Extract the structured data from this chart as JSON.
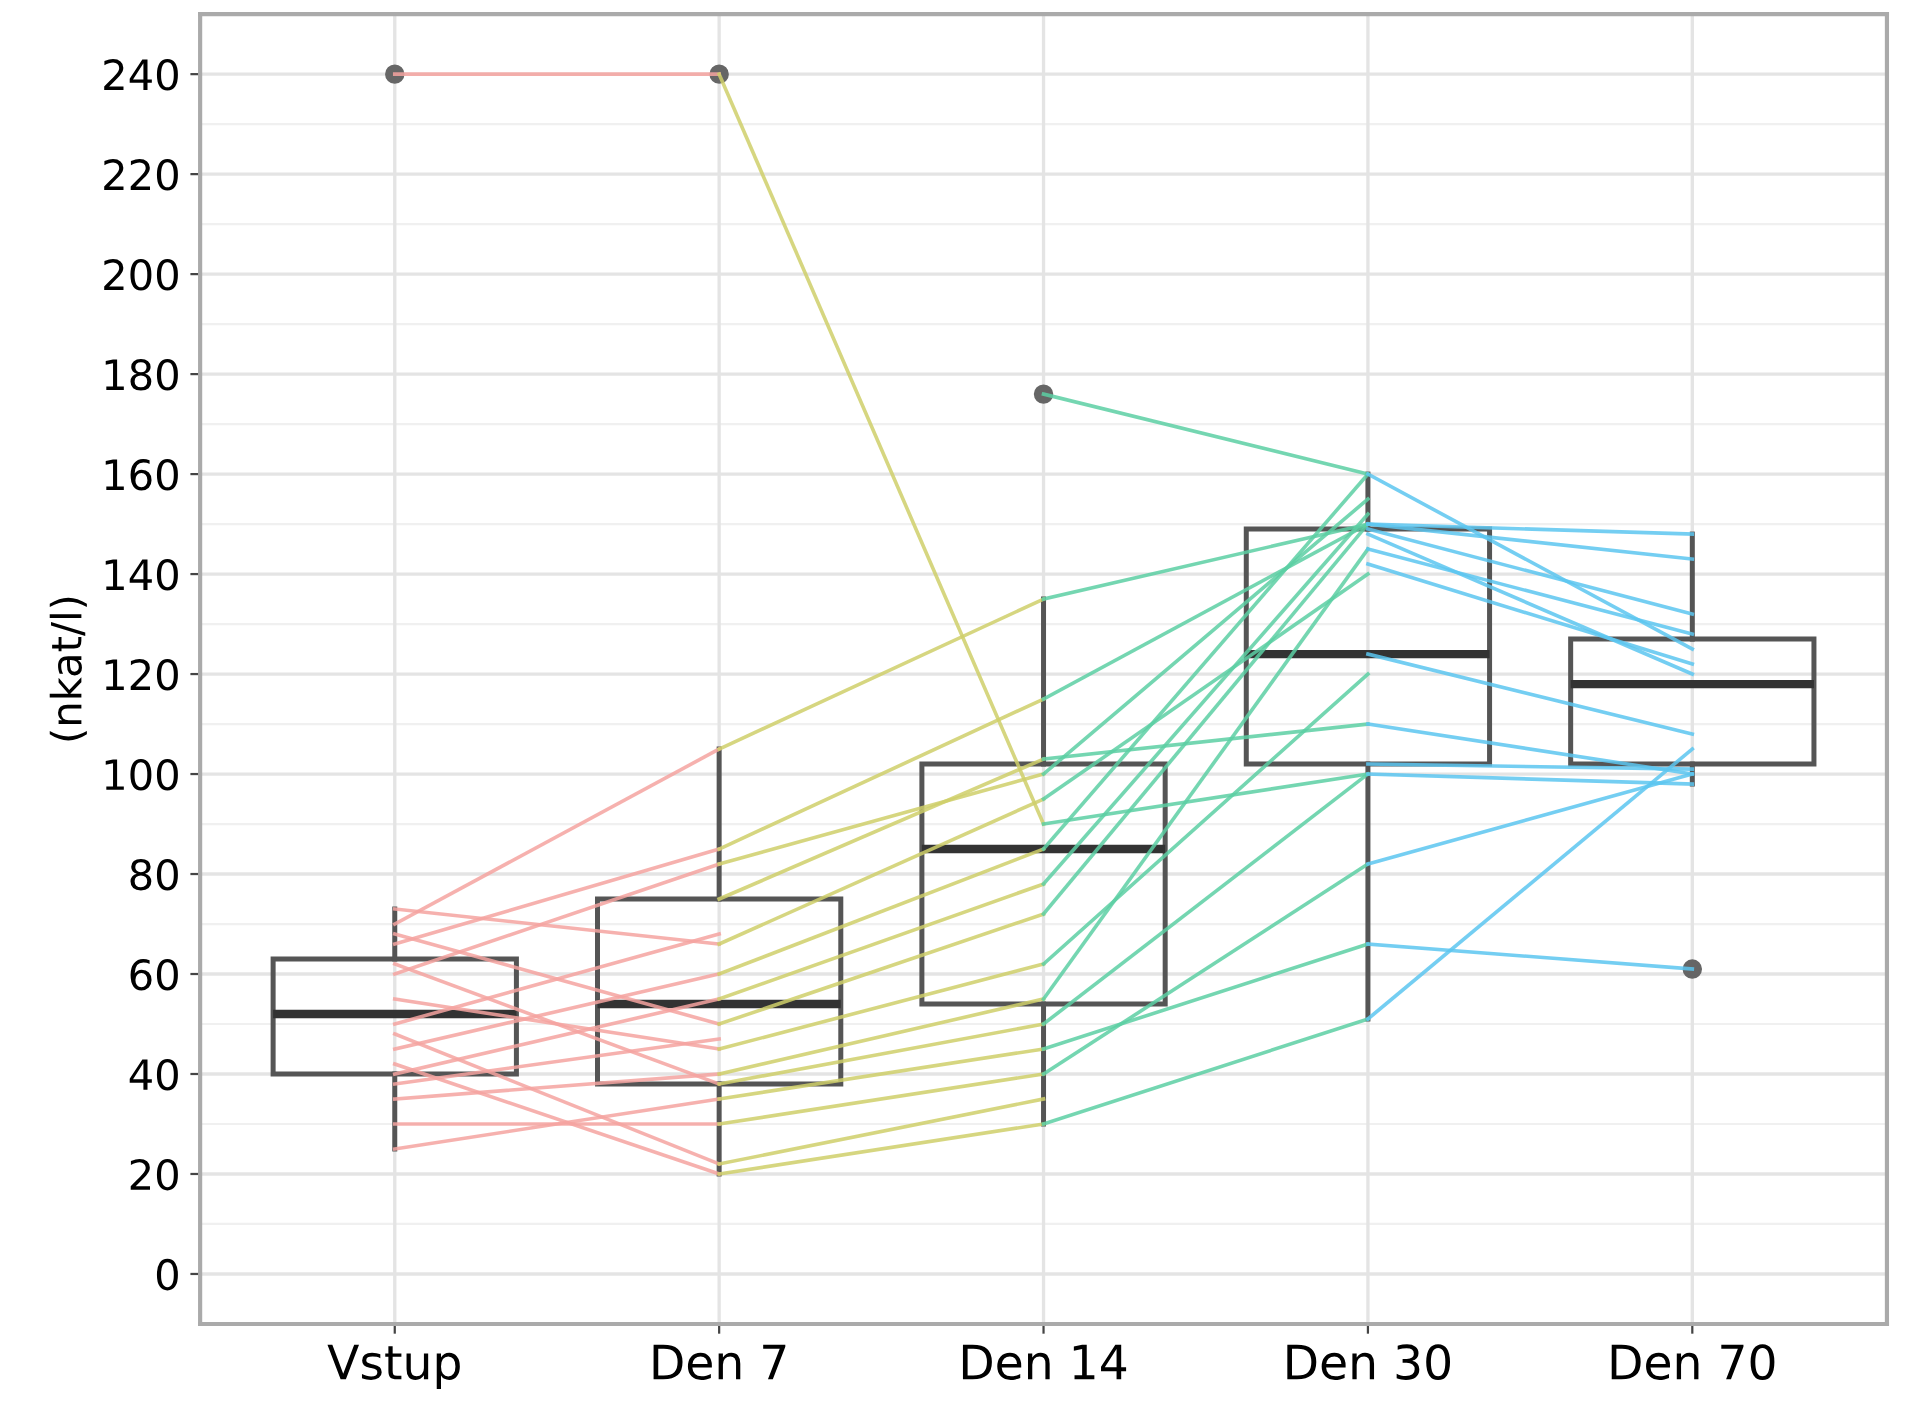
{
  "chart_data": {
    "type": "box",
    "ylabel": "(nkat/l)",
    "categories": [
      "Vstup",
      "Den 7",
      "Den 14",
      "Den 30",
      "Den 70"
    ],
    "ylim": [
      -10,
      252
    ],
    "yticks": [
      0,
      20,
      40,
      60,
      80,
      100,
      120,
      140,
      160,
      180,
      200,
      220,
      240
    ],
    "grid": true,
    "boxes": [
      {
        "low": 25,
        "q1": 40,
        "median": 52,
        "q3": 63,
        "high": 73,
        "outliers": [
          240
        ]
      },
      {
        "low": 20,
        "q1": 38,
        "median": 54,
        "q3": 75,
        "high": 105,
        "outliers": [
          240
        ]
      },
      {
        "low": 30,
        "q1": 54,
        "median": 85,
        "q3": 102,
        "high": 135,
        "outliers": [
          176
        ]
      },
      {
        "low": 51,
        "q1": 102,
        "median": 124,
        "q3": 149,
        "high": 160
      },
      {
        "low": 98,
        "q1": 102,
        "median": 118,
        "q3": 127,
        "high": 148,
        "outliers": [
          61
        ]
      }
    ],
    "series": [
      {
        "type": "line",
        "color": "#f4a3a0",
        "values": [
          240,
          240,
          null,
          null,
          null
        ]
      },
      {
        "type": "line",
        "color": "#f4a3a0",
        "values": [
          70,
          105,
          null,
          null,
          null
        ]
      },
      {
        "type": "line",
        "color": "#f4a3a0",
        "values": [
          66,
          85,
          null,
          null,
          null
        ]
      },
      {
        "type": "line",
        "color": "#f4a3a0",
        "values": [
          60,
          82,
          null,
          null,
          null
        ]
      },
      {
        "type": "line",
        "color": "#f4a3a0",
        "values": [
          73,
          66,
          null,
          null,
          null
        ]
      },
      {
        "type": "line",
        "color": "#f4a3a0",
        "values": [
          50,
          68,
          null,
          null,
          null
        ]
      },
      {
        "type": "line",
        "color": "#f4a3a0",
        "values": [
          45,
          60,
          null,
          null,
          null
        ]
      },
      {
        "type": "line",
        "color": "#f4a3a0",
        "values": [
          55,
          45,
          null,
          null,
          null
        ]
      },
      {
        "type": "line",
        "color": "#f4a3a0",
        "values": [
          40,
          55,
          null,
          null,
          null
        ]
      },
      {
        "type": "line",
        "color": "#f4a3a0",
        "values": [
          35,
          40,
          null,
          null,
          null
        ]
      },
      {
        "type": "line",
        "color": "#f4a3a0",
        "values": [
          62,
          38,
          null,
          null,
          null
        ]
      },
      {
        "type": "line",
        "color": "#f4a3a0",
        "values": [
          30,
          30,
          null,
          null,
          null
        ]
      },
      {
        "type": "line",
        "color": "#f4a3a0",
        "values": [
          48,
          22,
          null,
          null,
          null
        ]
      },
      {
        "type": "line",
        "color": "#f4a3a0",
        "values": [
          42,
          20,
          null,
          null,
          null
        ]
      },
      {
        "type": "line",
        "color": "#f4a3a0",
        "values": [
          25,
          35,
          null,
          null,
          null
        ]
      },
      {
        "type": "line",
        "color": "#f4a3a0",
        "values": [
          68,
          50,
          null,
          null,
          null
        ]
      },
      {
        "type": "line",
        "color": "#f4a3a0",
        "values": [
          38,
          47,
          null,
          null,
          null
        ]
      },
      {
        "type": "line",
        "color": "#cfcf6a",
        "values": [
          null,
          240,
          90,
          null,
          null
        ]
      },
      {
        "type": "line",
        "color": "#cfcf6a",
        "values": [
          null,
          105,
          135,
          null,
          null
        ]
      },
      {
        "type": "line",
        "color": "#cfcf6a",
        "values": [
          null,
          85,
          115,
          null,
          null
        ]
      },
      {
        "type": "line",
        "color": "#cfcf6a",
        "values": [
          null,
          82,
          100,
          null,
          null
        ]
      },
      {
        "type": "line",
        "color": "#cfcf6a",
        "values": [
          null,
          75,
          103,
          null,
          null
        ]
      },
      {
        "type": "line",
        "color": "#cfcf6a",
        "values": [
          null,
          66,
          95,
          null,
          null
        ]
      },
      {
        "type": "line",
        "color": "#cfcf6a",
        "values": [
          null,
          60,
          85,
          null,
          null
        ]
      },
      {
        "type": "line",
        "color": "#cfcf6a",
        "values": [
          null,
          55,
          78,
          null,
          null
        ]
      },
      {
        "type": "line",
        "color": "#cfcf6a",
        "values": [
          null,
          50,
          72,
          null,
          null
        ]
      },
      {
        "type": "line",
        "color": "#cfcf6a",
        "values": [
          null,
          45,
          62,
          null,
          null
        ]
      },
      {
        "type": "line",
        "color": "#cfcf6a",
        "values": [
          null,
          40,
          55,
          null,
          null
        ]
      },
      {
        "type": "line",
        "color": "#cfcf6a",
        "values": [
          null,
          38,
          50,
          null,
          null
        ]
      },
      {
        "type": "line",
        "color": "#cfcf6a",
        "values": [
          null,
          35,
          45,
          null,
          null
        ]
      },
      {
        "type": "line",
        "color": "#cfcf6a",
        "values": [
          null,
          30,
          40,
          null,
          null
        ]
      },
      {
        "type": "line",
        "color": "#cfcf6a",
        "values": [
          null,
          22,
          35,
          null,
          null
        ]
      },
      {
        "type": "line",
        "color": "#cfcf6a",
        "values": [
          null,
          20,
          30,
          null,
          null
        ]
      },
      {
        "type": "line",
        "color": "#5ccfa3",
        "values": [
          null,
          null,
          176,
          160,
          null
        ]
      },
      {
        "type": "line",
        "color": "#5ccfa3",
        "values": [
          null,
          null,
          135,
          150,
          null
        ]
      },
      {
        "type": "line",
        "color": "#5ccfa3",
        "values": [
          null,
          null,
          115,
          150,
          null
        ]
      },
      {
        "type": "line",
        "color": "#5ccfa3",
        "values": [
          null,
          null,
          103,
          110,
          null
        ]
      },
      {
        "type": "line",
        "color": "#5ccfa3",
        "values": [
          null,
          null,
          100,
          155,
          null
        ]
      },
      {
        "type": "line",
        "color": "#5ccfa3",
        "values": [
          null,
          null,
          95,
          140,
          null
        ]
      },
      {
        "type": "line",
        "color": "#5ccfa3",
        "values": [
          null,
          null,
          90,
          100,
          null
        ]
      },
      {
        "type": "line",
        "color": "#5ccfa3",
        "values": [
          null,
          null,
          85,
          160,
          null
        ]
      },
      {
        "type": "line",
        "color": "#5ccfa3",
        "values": [
          null,
          null,
          78,
          152,
          null
        ]
      },
      {
        "type": "line",
        "color": "#5ccfa3",
        "values": [
          null,
          null,
          72,
          150,
          null
        ]
      },
      {
        "type": "line",
        "color": "#5ccfa3",
        "values": [
          null,
          null,
          62,
          120,
          null
        ]
      },
      {
        "type": "line",
        "color": "#5ccfa3",
        "values": [
          null,
          null,
          55,
          145,
          null
        ]
      },
      {
        "type": "line",
        "color": "#5ccfa3",
        "values": [
          null,
          null,
          50,
          100,
          null
        ]
      },
      {
        "type": "line",
        "color": "#5ccfa3",
        "values": [
          null,
          null,
          45,
          66,
          null
        ]
      },
      {
        "type": "line",
        "color": "#5ccfa3",
        "values": [
          null,
          null,
          40,
          82,
          null
        ]
      },
      {
        "type": "line",
        "color": "#5ccfa3",
        "values": [
          null,
          null,
          30,
          51,
          null
        ]
      },
      {
        "type": "line",
        "color": "#5cc6f0",
        "values": [
          null,
          null,
          null,
          160,
          125
        ]
      },
      {
        "type": "line",
        "color": "#5cc6f0",
        "values": [
          null,
          null,
          null,
          150,
          148
        ]
      },
      {
        "type": "line",
        "color": "#5cc6f0",
        "values": [
          null,
          null,
          null,
          150,
          143
        ]
      },
      {
        "type": "line",
        "color": "#5cc6f0",
        "values": [
          null,
          null,
          null,
          149,
          132
        ]
      },
      {
        "type": "line",
        "color": "#5cc6f0",
        "values": [
          null,
          null,
          null,
          148,
          120
        ]
      },
      {
        "type": "line",
        "color": "#5cc6f0",
        "values": [
          null,
          null,
          null,
          145,
          128
        ]
      },
      {
        "type": "line",
        "color": "#5cc6f0",
        "values": [
          null,
          null,
          null,
          142,
          122
        ]
      },
      {
        "type": "line",
        "color": "#5cc6f0",
        "values": [
          null,
          null,
          null,
          124,
          108
        ]
      },
      {
        "type": "line",
        "color": "#5cc6f0",
        "values": [
          null,
          null,
          null,
          110,
          100
        ]
      },
      {
        "type": "line",
        "color": "#5cc6f0",
        "values": [
          null,
          null,
          null,
          102,
          101
        ]
      },
      {
        "type": "line",
        "color": "#5cc6f0",
        "values": [
          null,
          null,
          null,
          100,
          98
        ]
      },
      {
        "type": "line",
        "color": "#5cc6f0",
        "values": [
          null,
          null,
          null,
          82,
          100
        ]
      },
      {
        "type": "line",
        "color": "#5cc6f0",
        "values": [
          null,
          null,
          null,
          66,
          61
        ]
      },
      {
        "type": "line",
        "color": "#5cc6f0",
        "values": [
          null,
          null,
          null,
          51,
          105
        ]
      }
    ]
  }
}
